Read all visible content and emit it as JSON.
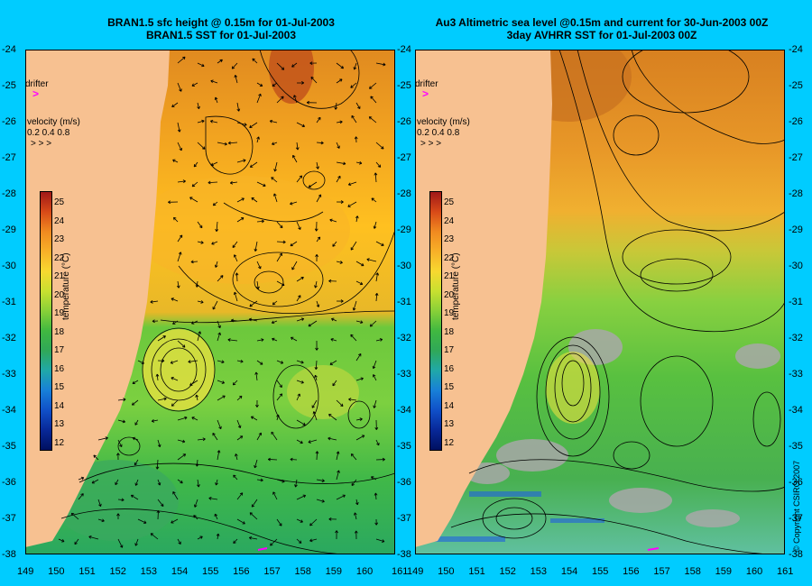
{
  "left_panel": {
    "title_line1": "BRAN1.5 sfc height @ 0.15m for 01-Jul-2003",
    "title_line2": "BRAN1.5 SST for 01-Jul-2003"
  },
  "right_panel": {
    "title_line1": "Au3 Altimetric sea level  @0.15m and current for 30-Jun-2003 00Z",
    "title_line2": "3day AVHRR SST for 01-Jul-2003 00Z"
  },
  "lat_labels": [
    "-24",
    "-25",
    "-26",
    "-27",
    "-28",
    "-29",
    "-30",
    "-31",
    "-32",
    "-33",
    "-34",
    "-35",
    "-36",
    "-37",
    "-38"
  ],
  "lon_labels": [
    "149",
    "150",
    "151",
    "152",
    "153",
    "154",
    "155",
    "156",
    "157",
    "158",
    "159",
    "160",
    "161"
  ],
  "drifter_label": "drifter",
  "velocity_legend": {
    "title": "velocity (m/s)",
    "values": "0.2 0.4 0.8",
    "arrows": ">  >  >"
  },
  "colorbar": {
    "title": "temperature (°C)",
    "ticks": [
      "25",
      "24",
      "23",
      "22",
      "21",
      "20",
      "19",
      "18",
      "17",
      "16",
      "15",
      "14",
      "13",
      "12"
    ]
  },
  "copyright": "© Copyright CSIRO 2007",
  "colors": {
    "background": "#00ccff",
    "land": "#f7c191",
    "drifter": "#ff00ff"
  }
}
